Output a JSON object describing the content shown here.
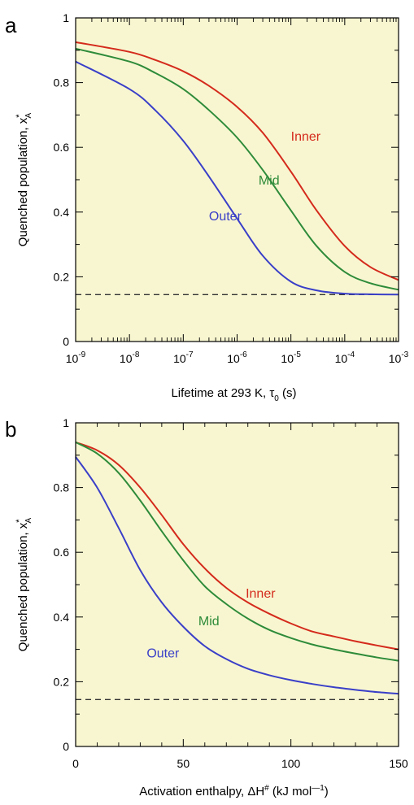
{
  "chart_data": [
    {
      "panel": "a",
      "type": "line",
      "x_scale": "log",
      "xlim": [
        1e-09,
        0.001
      ],
      "ylim": [
        0,
        1
      ],
      "xlabel": "Lifetime at 293 K, τ₀ (s)",
      "ylabel": "Quenched population, x*A",
      "x_ticks": [
        1e-09,
        1e-08,
        1e-07,
        1e-06,
        1e-05,
        0.0001,
        0.001
      ],
      "x_tick_labels": [
        {
          "base": "10",
          "exp": "-9"
        },
        {
          "base": "10",
          "exp": "-8"
        },
        {
          "base": "10",
          "exp": "-7"
        },
        {
          "base": "10",
          "exp": "-6"
        },
        {
          "base": "10",
          "exp": "-5"
        },
        {
          "base": "10",
          "exp": "-4"
        },
        {
          "base": "10",
          "exp": "-3"
        }
      ],
      "y_ticks": [
        0,
        0.2,
        0.4,
        0.6,
        0.8,
        1
      ],
      "y_tick_labels": [
        "0",
        "0.2",
        "0.4",
        "0.6",
        "0.8",
        "1"
      ],
      "reference_line": {
        "y": 0.145,
        "style": "dashed",
        "color": "#333333"
      },
      "series": [
        {
          "name": "Inner",
          "color": "#d42a1c",
          "x": [
            1e-09,
            1e-08,
            3e-08,
            1e-07,
            3e-07,
            1e-06,
            3e-06,
            1e-05,
            3e-05,
            0.0001,
            0.0003,
            0.001
          ],
          "y": [
            0.925,
            0.895,
            0.87,
            0.835,
            0.79,
            0.725,
            0.645,
            0.525,
            0.405,
            0.295,
            0.23,
            0.19
          ]
        },
        {
          "name": "Mid",
          "color": "#2e8b3a",
          "x": [
            1e-09,
            1e-08,
            3e-08,
            1e-07,
            3e-07,
            1e-06,
            3e-06,
            1e-05,
            3e-05,
            0.0001,
            0.0003,
            0.001
          ],
          "y": [
            0.905,
            0.865,
            0.83,
            0.78,
            0.715,
            0.63,
            0.53,
            0.405,
            0.295,
            0.215,
            0.18,
            0.16
          ]
        },
        {
          "name": "Outer",
          "color": "#3a3fc8",
          "x": [
            1e-09,
            1e-08,
            3e-08,
            1e-07,
            3e-07,
            1e-06,
            3e-06,
            1e-05,
            3e-05,
            0.0001,
            0.0003,
            0.001
          ],
          "y": [
            0.865,
            0.78,
            0.715,
            0.62,
            0.51,
            0.38,
            0.265,
            0.185,
            0.158,
            0.148,
            0.146,
            0.145
          ]
        }
      ],
      "label_anchors": [
        {
          "text": "Inner",
          "x": 1e-05,
          "y": 0.62
        },
        {
          "text": "Mid",
          "x": 2.5e-06,
          "y": 0.485
        },
        {
          "text": "Outer",
          "x": 3e-07,
          "y": 0.375
        }
      ]
    },
    {
      "panel": "b",
      "type": "line",
      "x_scale": "linear",
      "xlim": [
        0,
        150
      ],
      "ylim": [
        0,
        1
      ],
      "xlabel": "Activation enthalpy, ΔH# (kJ mol⁻¹)",
      "ylabel": "Quenched population, x*A",
      "x_ticks": [
        0,
        50,
        100,
        150
      ],
      "x_tick_labels": [
        "0",
        "50",
        "100",
        "150"
      ],
      "x_minor_ticks": [
        10,
        20,
        30,
        40,
        60,
        70,
        80,
        90,
        110,
        120,
        130,
        140
      ],
      "y_ticks": [
        0,
        0.2,
        0.4,
        0.6,
        0.8,
        1
      ],
      "y_tick_labels": [
        "0",
        "0.2",
        "0.4",
        "0.6",
        "0.8",
        "1"
      ],
      "reference_line": {
        "y": 0.145,
        "style": "dashed",
        "color": "#333333"
      },
      "series": [
        {
          "name": "Inner",
          "color": "#d42a1c",
          "x": [
            0,
            10,
            20,
            30,
            40,
            50,
            60,
            70,
            80,
            90,
            100,
            110,
            120,
            130,
            140,
            150
          ],
          "y": [
            0.94,
            0.915,
            0.87,
            0.8,
            0.715,
            0.625,
            0.55,
            0.49,
            0.445,
            0.41,
            0.38,
            0.355,
            0.34,
            0.325,
            0.312,
            0.3
          ]
        },
        {
          "name": "Mid",
          "color": "#2e8b3a",
          "x": [
            0,
            10,
            20,
            30,
            40,
            50,
            60,
            70,
            80,
            90,
            100,
            110,
            120,
            130,
            140,
            150
          ],
          "y": [
            0.94,
            0.905,
            0.845,
            0.76,
            0.665,
            0.575,
            0.495,
            0.44,
            0.395,
            0.36,
            0.335,
            0.315,
            0.3,
            0.287,
            0.275,
            0.265
          ]
        },
        {
          "name": "Outer",
          "color": "#3a3fc8",
          "x": [
            0,
            10,
            20,
            30,
            40,
            50,
            60,
            70,
            80,
            90,
            100,
            110,
            120,
            130,
            140,
            150
          ],
          "y": [
            0.895,
            0.8,
            0.675,
            0.545,
            0.445,
            0.37,
            0.31,
            0.27,
            0.24,
            0.22,
            0.205,
            0.193,
            0.183,
            0.175,
            0.168,
            0.163
          ]
        }
      ],
      "label_anchors": [
        {
          "text": "Inner",
          "x": 79,
          "y": 0.46
        },
        {
          "text": "Mid",
          "x": 57,
          "y": 0.375
        },
        {
          "text": "Outer",
          "x": 33,
          "y": 0.275
        }
      ]
    }
  ],
  "panels": [
    {
      "letter": "a"
    },
    {
      "letter": "b"
    }
  ],
  "style": {
    "plot_background": "#f8f6d0",
    "axis_color": "#000000"
  }
}
